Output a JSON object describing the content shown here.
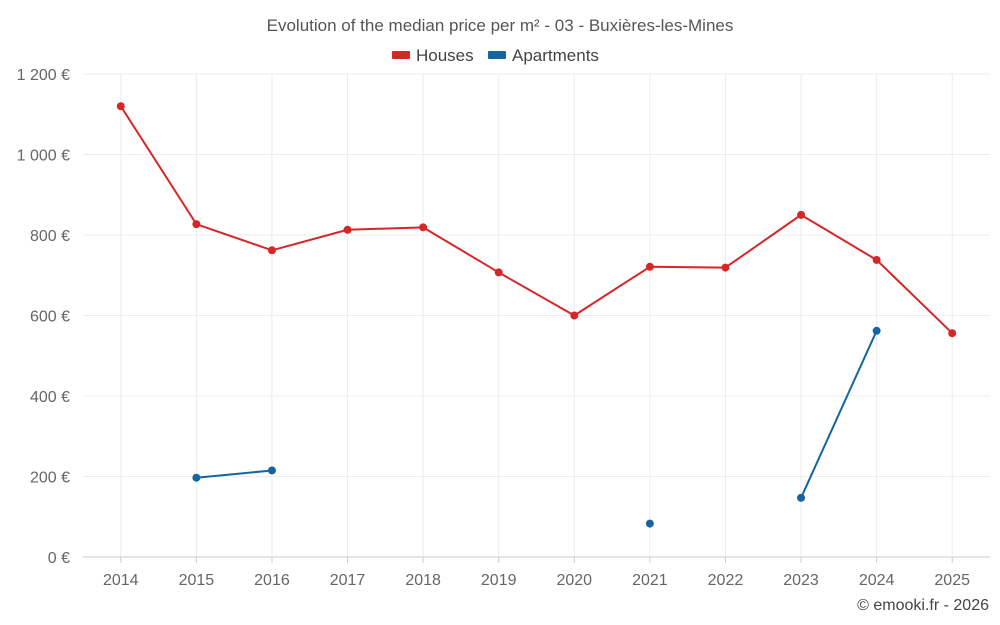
{
  "chart_data": {
    "type": "line",
    "title": "Evolution of the median price per m² - 03 - Buxières-les-Mines",
    "categories": [
      "2014",
      "2015",
      "2016",
      "2017",
      "2018",
      "2019",
      "2020",
      "2021",
      "2022",
      "2023",
      "2024",
      "2025"
    ],
    "series": [
      {
        "name": "Houses",
        "color": "#d62728",
        "values": [
          1120,
          827,
          762,
          813,
          819,
          707,
          600,
          721,
          719,
          850,
          738,
          556
        ]
      },
      {
        "name": "Apartments",
        "color": "#1565a0",
        "values": [
          null,
          197,
          215,
          null,
          null,
          null,
          null,
          83,
          null,
          147,
          562,
          null
        ]
      }
    ],
    "ylim": [
      0,
      1200
    ],
    "yticks": [
      0,
      200,
      400,
      600,
      800,
      1000,
      1200
    ],
    "ytick_labels": [
      "0 €",
      "200 €",
      "400 €",
      "600 €",
      "800 €",
      "1 000 €",
      "1 200 €"
    ],
    "xlabel": "",
    "ylabel": "",
    "legend_position": "top-center",
    "grid": true
  },
  "credit": "© emooki.fr - 2026"
}
